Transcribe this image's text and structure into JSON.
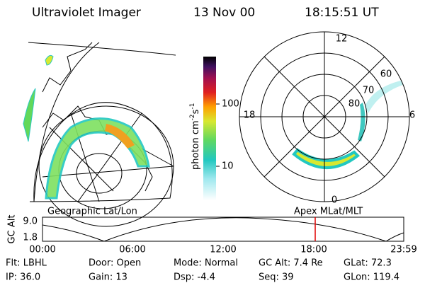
{
  "header": {
    "title": "Ultraviolet Imager",
    "date": "13 Nov 00",
    "time": "18:15:51 UT"
  },
  "colorbar": {
    "label": {
      "base": "photon cm",
      "exp1": "-2",
      "unit2": "s",
      "exp2": "-1"
    },
    "ticks": [
      "100",
      "10"
    ]
  },
  "polar_plot": {
    "mlt_labels": {
      "top": "12",
      "left": "18",
      "right": "6",
      "bottom": "0"
    },
    "lat_labels": [
      "60",
      "70",
      "80"
    ]
  },
  "captions": {
    "left": "Geographic Lat/Lon",
    "right": "Apex MLat/MLT"
  },
  "timeline": {
    "y_label": "GC Alt",
    "y_ticks": [
      "9.0",
      "1.8"
    ],
    "x_ticks": [
      "00:00",
      "06:00",
      "12:00",
      "18:00",
      "23:59"
    ]
  },
  "footer": {
    "rows": [
      [
        "Flt: LBHL",
        "Door: Open",
        "Mode: Normal",
        "GC Alt: 7.4 Re",
        "GLat: 72.3"
      ],
      [
        "IP: 36.0",
        "Gain: 13",
        "Dsp:  -4.4",
        "Seq: 39",
        "GLon: 119.4"
      ]
    ]
  }
}
